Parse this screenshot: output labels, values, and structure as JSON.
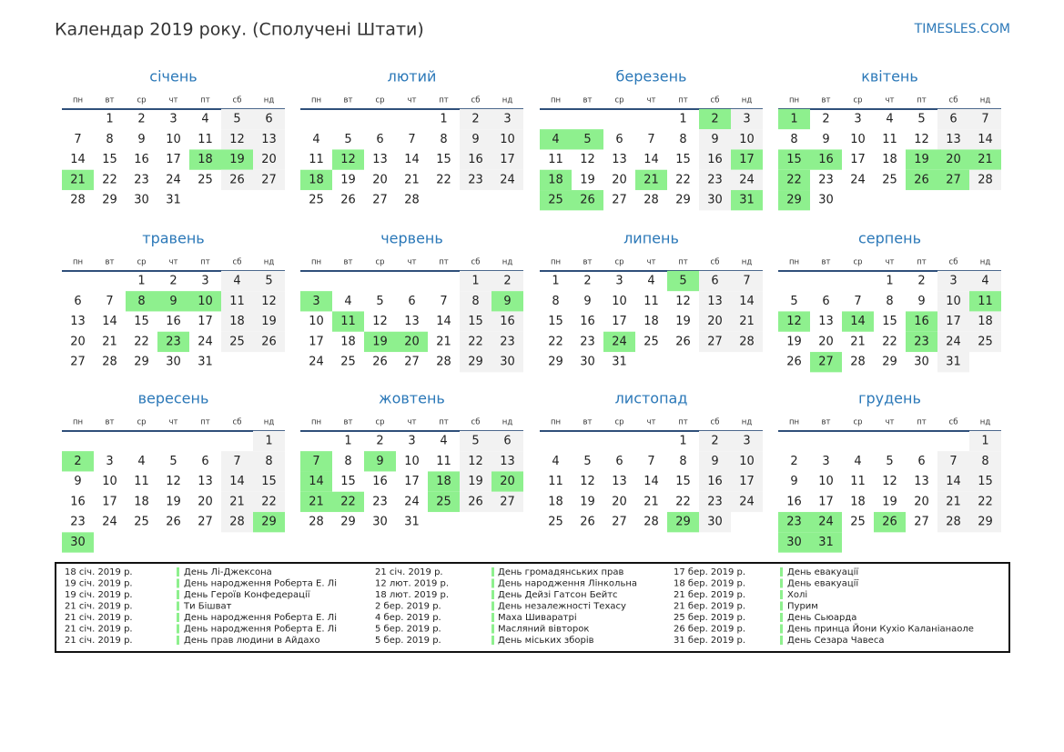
{
  "header": {
    "title": "Календар 2019 року. (Сполучені Штати)",
    "site": "TIMESLES.COM"
  },
  "weekdays": [
    "пн",
    "вт",
    "ср",
    "чт",
    "пт",
    "сб",
    "нд"
  ],
  "months": [
    {
      "name": "січень",
      "weeks": [
        [
          null,
          1,
          2,
          3,
          4,
          5,
          6
        ],
        [
          7,
          8,
          9,
          10,
          11,
          12,
          13
        ],
        [
          14,
          15,
          16,
          17,
          18,
          19,
          20
        ],
        [
          21,
          22,
          23,
          24,
          25,
          26,
          27
        ],
        [
          28,
          29,
          30,
          31,
          null,
          null,
          null
        ]
      ],
      "holidays": [
        18,
        19,
        21
      ]
    },
    {
      "name": "лютий",
      "weeks": [
        [
          null,
          null,
          null,
          null,
          1,
          2,
          3
        ],
        [
          4,
          5,
          6,
          7,
          8,
          9,
          10
        ],
        [
          11,
          12,
          13,
          14,
          15,
          16,
          17
        ],
        [
          18,
          19,
          20,
          21,
          22,
          23,
          24
        ],
        [
          25,
          26,
          27,
          28,
          null,
          null,
          null
        ]
      ],
      "holidays": [
        12,
        18
      ]
    },
    {
      "name": "березень",
      "weeks": [
        [
          null,
          null,
          null,
          null,
          1,
          2,
          3
        ],
        [
          4,
          5,
          6,
          7,
          8,
          9,
          10
        ],
        [
          11,
          12,
          13,
          14,
          15,
          16,
          17
        ],
        [
          18,
          19,
          20,
          21,
          22,
          23,
          24
        ],
        [
          25,
          26,
          27,
          28,
          29,
          30,
          31
        ]
      ],
      "holidays": [
        2,
        4,
        5,
        17,
        18,
        21,
        25,
        26,
        31
      ]
    },
    {
      "name": "квітень",
      "weeks": [
        [
          1,
          2,
          3,
          4,
          5,
          6,
          7
        ],
        [
          8,
          9,
          10,
          11,
          12,
          13,
          14
        ],
        [
          15,
          16,
          17,
          18,
          19,
          20,
          21
        ],
        [
          22,
          23,
          24,
          25,
          26,
          27,
          28
        ],
        [
          29,
          30,
          null,
          null,
          null,
          null,
          null
        ]
      ],
      "holidays": [
        1,
        15,
        16,
        19,
        20,
        21,
        22,
        26,
        27,
        29
      ]
    },
    {
      "name": "травень",
      "weeks": [
        [
          null,
          null,
          1,
          2,
          3,
          4,
          5
        ],
        [
          6,
          7,
          8,
          9,
          10,
          11,
          12
        ],
        [
          13,
          14,
          15,
          16,
          17,
          18,
          19
        ],
        [
          20,
          21,
          22,
          23,
          24,
          25,
          26
        ],
        [
          27,
          28,
          29,
          30,
          31,
          null,
          null
        ]
      ],
      "holidays": [
        8,
        9,
        10,
        23
      ]
    },
    {
      "name": "червень",
      "weeks": [
        [
          null,
          null,
          null,
          null,
          null,
          1,
          2
        ],
        [
          3,
          4,
          5,
          6,
          7,
          8,
          9
        ],
        [
          10,
          11,
          12,
          13,
          14,
          15,
          16
        ],
        [
          17,
          18,
          19,
          20,
          21,
          22,
          23
        ],
        [
          24,
          25,
          26,
          27,
          28,
          29,
          30
        ]
      ],
      "holidays": [
        3,
        9,
        11,
        19,
        20
      ]
    },
    {
      "name": "липень",
      "weeks": [
        [
          1,
          2,
          3,
          4,
          5,
          6,
          7
        ],
        [
          8,
          9,
          10,
          11,
          12,
          13,
          14
        ],
        [
          15,
          16,
          17,
          18,
          19,
          20,
          21
        ],
        [
          22,
          23,
          24,
          25,
          26,
          27,
          28
        ],
        [
          29,
          30,
          31,
          null,
          null,
          null,
          null
        ]
      ],
      "holidays": [
        5,
        24
      ]
    },
    {
      "name": "серпень",
      "weeks": [
        [
          null,
          null,
          null,
          1,
          2,
          3,
          4
        ],
        [
          5,
          6,
          7,
          8,
          9,
          10,
          11
        ],
        [
          12,
          13,
          14,
          15,
          16,
          17,
          18
        ],
        [
          19,
          20,
          21,
          22,
          23,
          24,
          25
        ],
        [
          26,
          27,
          28,
          29,
          30,
          31,
          null
        ]
      ],
      "holidays": [
        11,
        12,
        14,
        16,
        23,
        27
      ]
    },
    {
      "name": "вересень",
      "weeks": [
        [
          null,
          null,
          null,
          null,
          null,
          null,
          1
        ],
        [
          2,
          3,
          4,
          5,
          6,
          7,
          8
        ],
        [
          9,
          10,
          11,
          12,
          13,
          14,
          15
        ],
        [
          16,
          17,
          18,
          19,
          20,
          21,
          22
        ],
        [
          23,
          24,
          25,
          26,
          27,
          28,
          29
        ],
        [
          30,
          null,
          null,
          null,
          null,
          null,
          null
        ]
      ],
      "holidays": [
        2,
        29,
        30
      ]
    },
    {
      "name": "жовтень",
      "weeks": [
        [
          null,
          1,
          2,
          3,
          4,
          5,
          6
        ],
        [
          7,
          8,
          9,
          10,
          11,
          12,
          13
        ],
        [
          14,
          15,
          16,
          17,
          18,
          19,
          20
        ],
        [
          21,
          22,
          23,
          24,
          25,
          26,
          27
        ],
        [
          28,
          29,
          30,
          31,
          null,
          null,
          null
        ]
      ],
      "holidays": [
        7,
        9,
        14,
        18,
        20,
        21,
        22,
        25
      ]
    },
    {
      "name": "листопад",
      "weeks": [
        [
          null,
          null,
          null,
          null,
          1,
          2,
          3
        ],
        [
          4,
          5,
          6,
          7,
          8,
          9,
          10
        ],
        [
          11,
          12,
          13,
          14,
          15,
          16,
          17
        ],
        [
          18,
          19,
          20,
          21,
          22,
          23,
          24
        ],
        [
          25,
          26,
          27,
          28,
          29,
          30,
          null
        ]
      ],
      "holidays": [
        29
      ]
    },
    {
      "name": "грудень",
      "weeks": [
        [
          null,
          null,
          null,
          null,
          null,
          null,
          1
        ],
        [
          2,
          3,
          4,
          5,
          6,
          7,
          8
        ],
        [
          9,
          10,
          11,
          12,
          13,
          14,
          15
        ],
        [
          16,
          17,
          18,
          19,
          20,
          21,
          22
        ],
        [
          23,
          24,
          25,
          26,
          27,
          28,
          29
        ],
        [
          30,
          31,
          null,
          null,
          null,
          null,
          null
        ]
      ],
      "holidays": [
        23,
        24,
        26,
        30,
        31
      ]
    }
  ],
  "holiday_list": [
    [
      {
        "date": "18 січ. 2019 р.",
        "name": "День Лі-Джексона"
      },
      {
        "date": "19 січ. 2019 р.",
        "name": "День народження Роберта Е. Лі"
      },
      {
        "date": "19 січ. 2019 р.",
        "name": "День Героїв Конфедерації"
      },
      {
        "date": "21 січ. 2019 р.",
        "name": "Ти Бішват"
      },
      {
        "date": "21 січ. 2019 р.",
        "name": "День народження Роберта Е. Лі"
      },
      {
        "date": "21 січ. 2019 р.",
        "name": "День народження Роберта Е. Лі"
      },
      {
        "date": "21 січ. 2019 р.",
        "name": "День прав людини в Айдахо"
      }
    ],
    [
      {
        "date": "21 січ. 2019 р.",
        "name": "День громадянських прав"
      },
      {
        "date": "12 лют. 2019 р.",
        "name": "День народження Лінкольна"
      },
      {
        "date": "18 лют. 2019 р.",
        "name": "День Дейзі Гатсон Бейтс"
      },
      {
        "date": "2 бер. 2019 р.",
        "name": "День незалежності Техасу"
      },
      {
        "date": "4 бер. 2019 р.",
        "name": "Маха Шиваратрі"
      },
      {
        "date": "5 бер. 2019 р.",
        "name": "Масляний вівторок"
      },
      {
        "date": "5 бер. 2019 р.",
        "name": "День міських зборів"
      }
    ],
    [
      {
        "date": "17 бер. 2019 р.",
        "name": "День евакуації"
      },
      {
        "date": "18 бер. 2019 р.",
        "name": "День евакуації"
      },
      {
        "date": "21 бер. 2019 р.",
        "name": "Холі"
      },
      {
        "date": "21 бер. 2019 р.",
        "name": "Пурим"
      },
      {
        "date": "25 бер. 2019 р.",
        "name": "День Сьюарда"
      },
      {
        "date": "26 бер. 2019 р.",
        "name": "День принца Йони Кухіо Каланіанаоле"
      },
      {
        "date": "31 бер. 2019 р.",
        "name": "День Сезара Чавеса"
      }
    ]
  ]
}
